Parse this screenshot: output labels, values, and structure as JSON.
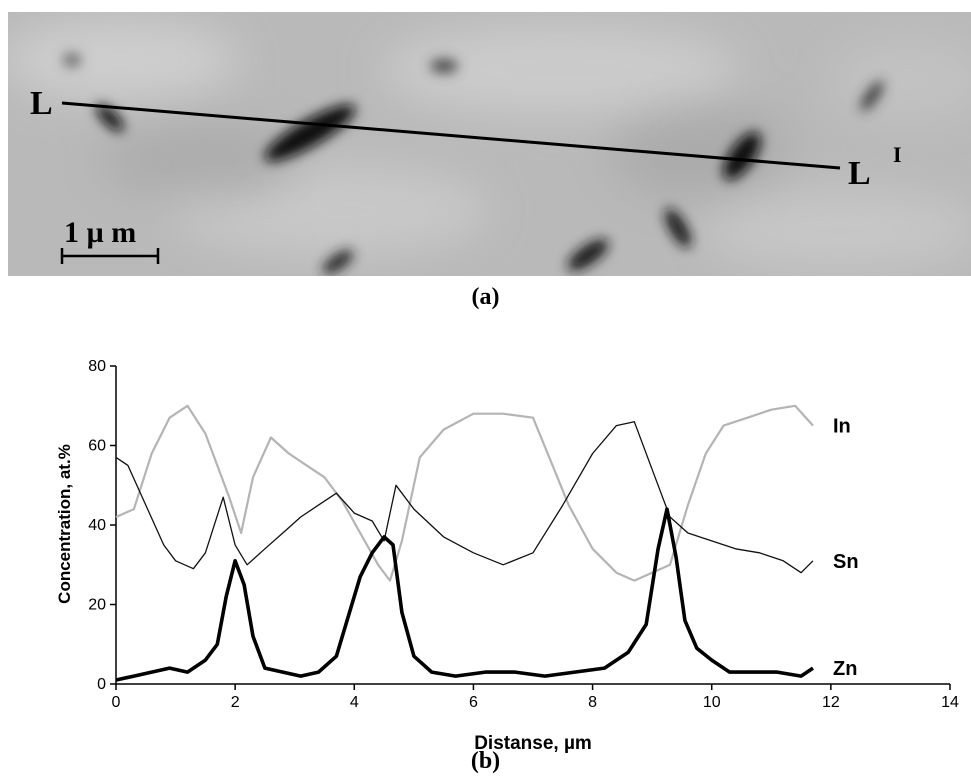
{
  "figure": {
    "caption_a": "(a)",
    "caption_b": "(b)"
  },
  "micrograph": {
    "line_start_label": "L",
    "line_end_label": "L",
    "line_end_superscript": "I",
    "scale_bar_label": "1 µ m"
  },
  "chart_data": {
    "type": "line",
    "xlabel": "Distanse, µm",
    "ylabel": "Concentration, at.%",
    "xlim": [
      0,
      14
    ],
    "ylim": [
      0,
      80
    ],
    "xticks": [
      0,
      2,
      4,
      6,
      8,
      10,
      12,
      14
    ],
    "yticks": [
      0,
      20,
      40,
      60,
      80
    ],
    "grid": false,
    "legend": "series labels at right end of lines",
    "series": [
      {
        "name": "In",
        "color": "#b4b4b4",
        "x": [
          0,
          0.3,
          0.6,
          0.9,
          1.2,
          1.5,
          1.7,
          1.9,
          2.1,
          2.3,
          2.6,
          2.9,
          3.2,
          3.5,
          3.8,
          4.1,
          4.4,
          4.6,
          4.8,
          5.1,
          5.5,
          6.0,
          6.5,
          7.0,
          7.3,
          7.6,
          8.0,
          8.4,
          8.7,
          9.0,
          9.3,
          9.6,
          9.9,
          10.2,
          10.6,
          11.0,
          11.4,
          11.7
        ],
        "y": [
          42,
          44,
          58,
          67,
          70,
          63,
          55,
          47,
          38,
          52,
          62,
          58,
          55,
          52,
          46,
          38,
          30,
          26,
          36,
          57,
          64,
          68,
          68,
          67,
          56,
          45,
          34,
          28,
          26,
          28,
          30,
          45,
          58,
          65,
          67,
          69,
          70,
          65
        ]
      },
      {
        "name": "Sn",
        "color": "#111111",
        "x": [
          0,
          0.2,
          0.5,
          0.8,
          1.0,
          1.3,
          1.5,
          1.8,
          2.0,
          2.2,
          2.5,
          2.8,
          3.1,
          3.4,
          3.7,
          4.0,
          4.3,
          4.5,
          4.7,
          5.0,
          5.5,
          6.0,
          6.5,
          7.0,
          7.5,
          8.0,
          8.4,
          8.7,
          9.0,
          9.3,
          9.6,
          10.0,
          10.4,
          10.8,
          11.2,
          11.5,
          11.7
        ],
        "y": [
          57,
          55,
          45,
          35,
          31,
          29,
          33,
          47,
          35,
          30,
          34,
          38,
          42,
          45,
          48,
          43,
          41,
          36,
          50,
          44,
          37,
          33,
          30,
          33,
          45,
          58,
          65,
          66,
          54,
          42,
          38,
          36,
          34,
          33,
          31,
          28,
          31
        ]
      },
      {
        "name": "Zn",
        "color": "#000000",
        "x": [
          0,
          0.3,
          0.6,
          0.9,
          1.2,
          1.5,
          1.7,
          1.85,
          2.0,
          2.15,
          2.3,
          2.5,
          2.8,
          3.1,
          3.4,
          3.7,
          3.9,
          4.1,
          4.3,
          4.5,
          4.65,
          4.8,
          5.0,
          5.3,
          5.7,
          6.2,
          6.7,
          7.2,
          7.7,
          8.2,
          8.6,
          8.9,
          9.1,
          9.25,
          9.4,
          9.55,
          9.75,
          10.0,
          10.3,
          10.7,
          11.1,
          11.5,
          11.7
        ],
        "y": [
          1,
          2,
          3,
          4,
          3,
          6,
          10,
          22,
          31,
          25,
          12,
          4,
          3,
          2,
          3,
          7,
          17,
          27,
          33,
          37,
          35,
          18,
          7,
          3,
          2,
          3,
          3,
          2,
          3,
          4,
          8,
          15,
          34,
          44,
          32,
          16,
          9,
          6,
          3,
          3,
          3,
          2,
          4
        ]
      }
    ]
  }
}
